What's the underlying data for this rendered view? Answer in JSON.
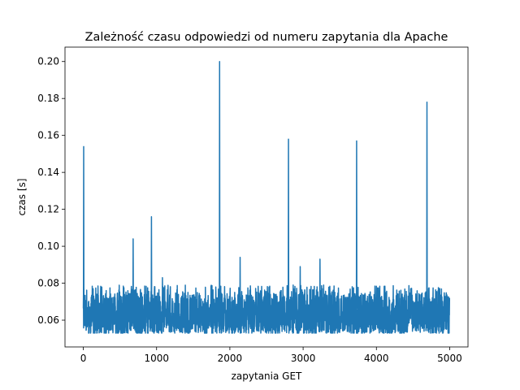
{
  "chart_data": {
    "type": "line",
    "title": "Zależność czasu odpowiedzi od numeru zapytania dla Apache",
    "xlabel": "zapytania GET",
    "ylabel": "czas [s]",
    "xlim": [
      -250,
      5250
    ],
    "ylim": [
      0.0455,
      0.2078
    ],
    "xticks": [
      0,
      1000,
      2000,
      3000,
      4000,
      5000
    ],
    "xtick_labels": [
      "0",
      "1000",
      "2000",
      "3000",
      "4000",
      "5000"
    ],
    "yticks": [
      0.06,
      0.08,
      0.1,
      0.12,
      0.14,
      0.16,
      0.18,
      0.2
    ],
    "ytick_labels": [
      "0.06",
      "0.08",
      "0.10",
      "0.12",
      "0.14",
      "0.16",
      "0.18",
      "0.20"
    ],
    "grid": false,
    "legend": "none",
    "color": "#1f77b4",
    "n_points": 5000,
    "baseline_range": [
      0.053,
      0.079
    ],
    "spikes": [
      {
        "x": 5,
        "y": 0.154
      },
      {
        "x": 680,
        "y": 0.104
      },
      {
        "x": 930,
        "y": 0.116
      },
      {
        "x": 1080,
        "y": 0.083
      },
      {
        "x": 1860,
        "y": 0.2
      },
      {
        "x": 2140,
        "y": 0.094
      },
      {
        "x": 2800,
        "y": 0.158
      },
      {
        "x": 2960,
        "y": 0.089
      },
      {
        "x": 3230,
        "y": 0.093
      },
      {
        "x": 3730,
        "y": 0.157
      },
      {
        "x": 4690,
        "y": 0.178
      }
    ]
  }
}
